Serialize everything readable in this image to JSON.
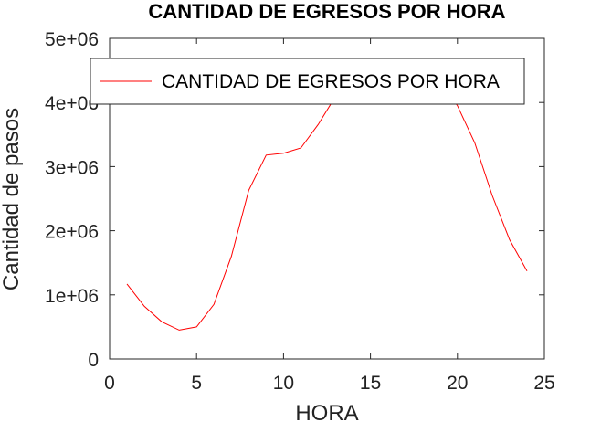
{
  "chart_data": {
    "type": "line",
    "title": "CANTIDAD DE EGRESOS POR HORA",
    "xlabel": "HORA",
    "ylabel": "Cantidad de pasos",
    "xlim": [
      0,
      25
    ],
    "ylim": [
      0,
      5000000
    ],
    "xticks": [
      0,
      5,
      10,
      15,
      20,
      25
    ],
    "xtick_labels": [
      "0",
      "5",
      "10",
      "15",
      "20",
      "25"
    ],
    "yticks": [
      0,
      1000000,
      2000000,
      3000000,
      4000000,
      5000000
    ],
    "ytick_labels": [
      "0",
      "1e+06",
      "2e+06",
      "3e+06",
      "4e+06",
      "5e+06"
    ],
    "grid": false,
    "legend_position": "top",
    "series": [
      {
        "name": "CANTIDAD DE EGRESOS POR HORA",
        "color": "#ff0000",
        "x": [
          1,
          2,
          3,
          4,
          5,
          6,
          7,
          8,
          9,
          10,
          11,
          12,
          13,
          14,
          15,
          16,
          17,
          18,
          19,
          20,
          21,
          22,
          23,
          24
        ],
        "y": [
          1170000,
          820000,
          580000,
          450000,
          500000,
          850000,
          1600000,
          2630000,
          3180000,
          3210000,
          3290000,
          3660000,
          4100000,
          4500000,
          4650000,
          4650000,
          4600000,
          4500000,
          4350000,
          3950000,
          3370000,
          2550000,
          1860000,
          1370000
        ]
      }
    ]
  }
}
